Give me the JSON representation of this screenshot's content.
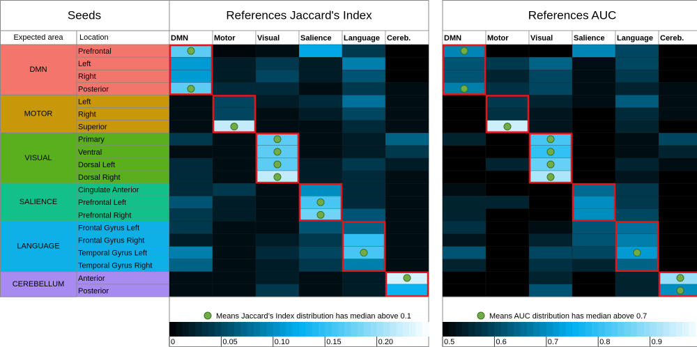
{
  "seeds": {
    "title": "Seeds",
    "headers": [
      "Expected area",
      "Location"
    ],
    "groups": [
      {
        "name": "DMN",
        "color": "#f4756b",
        "locations": [
          "Prefrontal",
          "Left",
          "Right",
          "Posterior"
        ]
      },
      {
        "name": "MOTOR",
        "color": "#c8970a",
        "locations": [
          "Left",
          "Right",
          "Superior"
        ]
      },
      {
        "name": "VISUAL",
        "color": "#5aaf1c",
        "locations": [
          "Primary",
          "Ventral",
          "Dorsal Left",
          "Dorsal Right"
        ]
      },
      {
        "name": "SALIENCE",
        "color": "#13c08a",
        "locations": [
          "Cingulate Anterior",
          "Prefrontal Left",
          "Prefrontal Right"
        ]
      },
      {
        "name": "LANGUAGE",
        "color": "#0fb0e8",
        "locations": [
          "Frontal Gyrus Left",
          "Frontal Gyrus Right",
          "Temporal Gyrus Left",
          "Temporal Gyrus Right"
        ]
      },
      {
        "name": "CEREBELLUM",
        "color": "#a78bf0",
        "locations": [
          "Anterior",
          "Posterior"
        ]
      }
    ]
  },
  "chart_data": [
    {
      "type": "heatmap",
      "title": "References Jaccard's Index",
      "columns": [
        "DMN",
        "Motor",
        "Visual",
        "Salience",
        "Language",
        "Cereb."
      ],
      "values": [
        [
          0.17,
          0.005,
          0.01,
          0.12,
          0.04,
          0
        ],
        [
          0.11,
          0.02,
          0.04,
          0.02,
          0.09,
          0
        ],
        [
          0.11,
          0.02,
          0.05,
          0.02,
          0.06,
          0
        ],
        [
          0.17,
          0.03,
          0.03,
          0.01,
          0.04,
          0.01
        ],
        [
          0.01,
          0.05,
          0.02,
          0.03,
          0.08,
          0.01
        ],
        [
          0.01,
          0.05,
          0.01,
          0.02,
          0.05,
          0.01
        ],
        [
          0.01,
          0.22,
          0.01,
          0.01,
          0.03,
          0.01
        ],
        [
          0.04,
          0.01,
          0.17,
          0.01,
          0.02,
          0.07
        ],
        [
          0.01,
          0.01,
          0.17,
          0.01,
          0.02,
          0.04
        ],
        [
          0.03,
          0.01,
          0.17,
          0.02,
          0.04,
          0.02
        ],
        [
          0.03,
          0.01,
          0.22,
          0.02,
          0.03,
          0.01
        ],
        [
          0.03,
          0.04,
          0.01,
          0.1,
          0.03,
          0.01
        ],
        [
          0.06,
          0.02,
          0.01,
          0.16,
          0.03,
          0.01
        ],
        [
          0.04,
          0.02,
          0.01,
          0.18,
          0.06,
          0.01
        ],
        [
          0.04,
          0.01,
          0.01,
          0.06,
          0.07,
          0.01
        ],
        [
          0.02,
          0.01,
          0.02,
          0.04,
          0.15,
          0.01
        ],
        [
          0.09,
          0.01,
          0.03,
          0.05,
          0.16,
          0.01
        ],
        [
          0.07,
          0.01,
          0.02,
          0.04,
          0.09,
          0.01
        ],
        [
          0.01,
          0.01,
          0.02,
          0.01,
          0.02,
          0.23
        ],
        [
          0.01,
          0.01,
          0.04,
          0.01,
          0.02,
          0.13
        ]
      ],
      "markers": [
        [
          0,
          0
        ],
        [
          3,
          0
        ],
        [
          6,
          1
        ],
        [
          7,
          2
        ],
        [
          8,
          2
        ],
        [
          9,
          2
        ],
        [
          10,
          2
        ],
        [
          12,
          3
        ],
        [
          13,
          3
        ],
        [
          16,
          4
        ],
        [
          18,
          5
        ]
      ],
      "legend_text": "Means Jaccard’s Index distribution has median above 0.1",
      "colorlim": [
        0,
        0.25
      ],
      "colorticks": [
        0,
        0.05,
        {
          "value": 0.1,
          "label": "0.10"
        },
        0.15,
        {
          "value": 0.2,
          "label": "0.20"
        }
      ]
    },
    {
      "type": "heatmap",
      "title": "References AUC",
      "columns": [
        "DMN",
        "Motor",
        "Visual",
        "Salience",
        "Language",
        "Cereb."
      ],
      "values": [
        [
          0.69,
          0.5,
          0.5,
          0.69,
          0.6,
          0.5
        ],
        [
          0.62,
          0.58,
          0.64,
          0.52,
          0.6,
          0.5
        ],
        [
          0.62,
          0.55,
          0.6,
          0.52,
          0.58,
          0.5
        ],
        [
          0.68,
          0.57,
          0.6,
          0.52,
          0.55,
          0.52
        ],
        [
          0.5,
          0.58,
          0.55,
          0.52,
          0.63,
          0.52
        ],
        [
          0.5,
          0.57,
          0.53,
          0.5,
          0.56,
          0.52
        ],
        [
          0.5,
          0.95,
          0.53,
          0.5,
          0.55,
          0.5
        ],
        [
          0.55,
          0.5,
          0.82,
          0.5,
          0.52,
          0.6
        ],
        [
          0.5,
          0.5,
          0.8,
          0.5,
          0.52,
          0.55
        ],
        [
          0.5,
          0.55,
          0.85,
          0.5,
          0.55,
          0.52
        ],
        [
          0.5,
          0.5,
          0.92,
          0.5,
          0.53,
          0.5
        ],
        [
          0.52,
          0.5,
          0.5,
          0.65,
          0.58,
          0.5
        ],
        [
          0.55,
          0.55,
          0.5,
          0.7,
          0.58,
          0.5
        ],
        [
          0.55,
          0.5,
          0.5,
          0.7,
          0.6,
          0.5
        ],
        [
          0.57,
          0.5,
          0.52,
          0.62,
          0.66,
          0.5
        ],
        [
          0.53,
          0.5,
          0.55,
          0.62,
          0.68,
          0.5
        ],
        [
          0.62,
          0.5,
          0.6,
          0.6,
          0.72,
          0.5
        ],
        [
          0.55,
          0.5,
          0.57,
          0.55,
          0.64,
          0.5
        ],
        [
          0.5,
          0.5,
          0.55,
          0.5,
          0.55,
          0.9
        ],
        [
          0.5,
          0.5,
          0.62,
          0.5,
          0.55,
          0.7
        ]
      ],
      "markers": [
        [
          0,
          0
        ],
        [
          3,
          0
        ],
        [
          6,
          1
        ],
        [
          7,
          2
        ],
        [
          8,
          2
        ],
        [
          9,
          2
        ],
        [
          10,
          2
        ],
        [
          16,
          4
        ],
        [
          18,
          5
        ],
        [
          19,
          5
        ]
      ],
      "legend_text": "Means AUC distribution has median above 0.7",
      "colorlim": [
        0.5,
        1.0
      ],
      "colorticks": [
        0.5,
        0.6,
        0.7,
        0.8,
        0.9
      ]
    }
  ]
}
